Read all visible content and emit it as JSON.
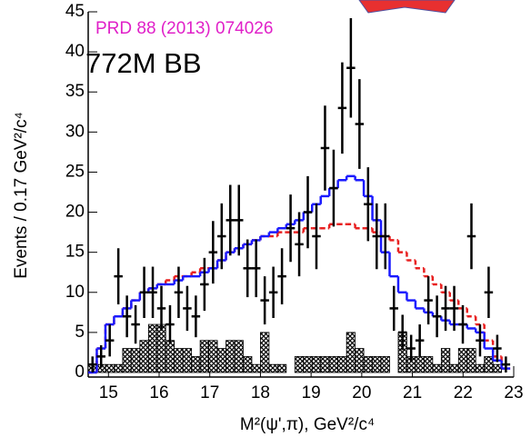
{
  "chart_data": {
    "type": "histogram",
    "annotations": [
      "PRD 88 (2013) 074026",
      "772M BB"
    ],
    "annotation_colors": [
      "#e020c8",
      "#000000"
    ],
    "xlabel": "M²(ψ',π), GeV²/c⁴",
    "ylabel": "Events / 0.17 GeV²/c⁴",
    "xlim": [
      14.6,
      23
    ],
    "ylim": [
      0,
      45
    ],
    "xticks": [
      15,
      16,
      17,
      18,
      19,
      20,
      21,
      22,
      23
    ],
    "yticks": [
      0,
      5,
      10,
      15,
      20,
      25,
      30,
      35,
      40,
      45
    ],
    "bins": [
      14.6,
      14.77,
      14.94,
      15.11,
      15.28,
      15.45,
      15.62,
      15.79,
      15.96,
      16.13,
      16.3,
      16.47,
      16.64,
      16.81,
      16.98,
      17.15,
      17.32,
      17.49,
      17.66,
      17.83,
      18,
      18.17,
      18.34,
      18.51,
      18.68,
      18.85,
      19.02,
      19.19,
      19.36,
      19.53,
      19.7,
      19.87,
      20.04,
      20.21,
      20.38,
      20.55,
      20.72,
      20.89,
      21.06,
      21.23,
      21.4,
      21.57,
      21.74,
      21.91,
      22.08,
      22.25,
      22.42,
      22.59,
      22.76,
      22.93
    ],
    "series": [
      {
        "style": "hatched",
        "color": "#000000",
        "values": [
          1,
          1,
          1,
          1,
          3,
          3,
          4,
          6,
          6,
          4,
          3,
          3,
          2,
          4,
          4,
          3,
          4,
          4,
          2,
          1,
          5,
          1,
          1,
          0,
          2,
          2,
          2,
          2,
          2,
          2,
          5,
          3,
          2,
          2,
          2,
          0,
          5,
          2,
          2,
          2,
          1,
          3,
          1,
          3,
          3,
          1,
          2,
          1,
          0
        ]
      },
      {
        "style": "dashed-step",
        "color": "#e82020",
        "values": [
          0,
          3,
          6,
          7,
          8,
          9,
          10,
          10.5,
          11,
          11.5,
          12,
          12,
          12.5,
          13,
          13,
          14,
          15,
          15.5,
          16,
          16.5,
          17,
          17,
          17.5,
          17.5,
          17.5,
          18,
          18,
          18,
          18.5,
          18.5,
          18.5,
          18,
          18,
          17.5,
          17,
          16.5,
          15,
          14,
          13,
          12,
          11,
          10,
          9,
          8,
          7,
          6,
          4,
          2,
          0.5
        ]
      },
      {
        "style": "step",
        "color": "#1a1aff",
        "values": [
          0,
          3,
          6,
          7,
          8,
          9,
          10,
          10.5,
          11,
          11,
          11.5,
          12,
          12,
          12.5,
          13,
          14,
          15,
          15.5,
          16,
          16.5,
          17,
          17.5,
          18,
          18.5,
          19,
          20,
          21,
          22,
          23,
          24,
          24.5,
          24,
          22,
          19,
          15,
          12,
          10,
          9,
          8,
          7.5,
          7,
          6.5,
          6,
          6,
          5.5,
          5,
          3,
          1.5,
          0.5
        ]
      },
      {
        "style": "points",
        "color": "#000000",
        "values": [
          1,
          2,
          4,
          12,
          7,
          6,
          10,
          10,
          8,
          6,
          10,
          8,
          7,
          11,
          15,
          17,
          19,
          19,
          13,
          13,
          9,
          10,
          12,
          18,
          16,
          20,
          17,
          28,
          23,
          33,
          38,
          31,
          21,
          17,
          17,
          8,
          5,
          3,
          4,
          9,
          7,
          8,
          8,
          6,
          17,
          4,
          10,
          3,
          1
        ],
        "errors": [
          1,
          1.4,
          2,
          3.5,
          2.6,
          2.4,
          3.2,
          3.2,
          2.8,
          2.4,
          3.2,
          2.8,
          2.6,
          3.3,
          3.9,
          4.1,
          4.4,
          4.4,
          3.6,
          3.6,
          3,
          3.2,
          3.5,
          4.2,
          4,
          4.5,
          4.1,
          5.3,
          4.8,
          5.7,
          6.2,
          5.6,
          4.6,
          4.1,
          4.1,
          2.8,
          2.2,
          1.7,
          2,
          3,
          2.6,
          2.8,
          2.8,
          2.4,
          4.1,
          2,
          3.2,
          1.7,
          1
        ]
      }
    ]
  }
}
